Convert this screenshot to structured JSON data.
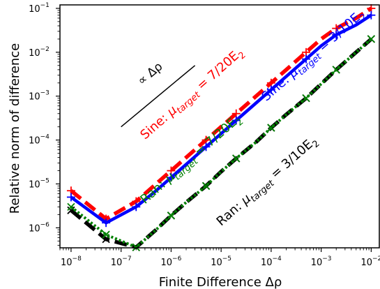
{
  "chart_data": {
    "type": "line",
    "xlabel": "Finite Difference Δρ",
    "ylabel": "Relative norm of difference",
    "xscale": "log",
    "yscale": "log",
    "xlim": [
      6e-09,
      0.015
    ],
    "ylim": [
      3.5e-07,
      0.12
    ],
    "grid": false,
    "x_ticks": [
      {
        "value": 1e-08,
        "base": "10",
        "exp": "−8"
      },
      {
        "value": 1e-07,
        "base": "10",
        "exp": "−7"
      },
      {
        "value": 1e-06,
        "base": "10",
        "exp": "−6"
      },
      {
        "value": 1e-05,
        "base": "10",
        "exp": "−5"
      },
      {
        "value": 0.0001,
        "base": "10",
        "exp": "−4"
      },
      {
        "value": 0.001,
        "base": "10",
        "exp": "−3"
      },
      {
        "value": 0.01,
        "base": "10",
        "exp": "−2"
      }
    ],
    "y_ticks": [
      {
        "value": 1e-06,
        "base": "10",
        "exp": "−6"
      },
      {
        "value": 1e-05,
        "base": "10",
        "exp": "−5"
      },
      {
        "value": 0.0001,
        "base": "10",
        "exp": "−4"
      },
      {
        "value": 0.001,
        "base": "10",
        "exp": "−3"
      },
      {
        "value": 0.01,
        "base": "10",
        "exp": "−2"
      },
      {
        "value": 0.1,
        "base": "10",
        "exp": "−1"
      }
    ],
    "x": [
      1e-08,
      5e-08,
      2e-07,
      5e-07,
      1e-06,
      2e-06,
      5e-06,
      1e-05,
      2e-05,
      5e-05,
      0.0001,
      0.0002,
      0.0005,
      0.001,
      0.002,
      0.005,
      0.01
    ],
    "series": [
      {
        "name": "Sine: μ_target = 7/20E₂",
        "color": "#ff0000",
        "dash": "dashed",
        "marker": "plus",
        "values": [
          7e-06,
          1.6e-06,
          4e-06,
          1e-05,
          2e-05,
          4e-05,
          0.0001,
          0.0002,
          0.0004,
          0.001,
          0.002,
          0.004,
          0.01,
          0.02,
          0.035,
          0.06,
          0.1
        ]
      },
      {
        "name": "Sine: μ_target = 3/10E₂",
        "color": "#0000ff",
        "dash": "solid",
        "marker": "plus",
        "values": [
          5e-06,
          1.3e-06,
          3e-06,
          7e-06,
          1.4e-05,
          2.8e-05,
          7e-05,
          0.00014,
          0.00028,
          0.0007,
          0.0014,
          0.0028,
          0.007,
          0.014,
          0.025,
          0.042,
          0.07
        ]
      },
      {
        "name": "Ran: μ_target = 3/10E₂",
        "color": "#000000",
        "dash": "dashed",
        "marker": "x",
        "values": [
          2.5e-06,
          5.5e-07,
          3.6e-07,
          9e-07,
          1.9e-06,
          3.8e-06,
          9e-06,
          1.9e-05,
          3.8e-05,
          9e-05,
          0.00019,
          0.00038,
          0.0009,
          0.0019,
          0.004,
          0.01,
          0.02
        ]
      },
      {
        "name": "Ran: μ_target = 7/20E₂",
        "color": "#008000",
        "dash": "dotted",
        "marker": "x",
        "values": [
          3e-06,
          7e-07,
          3.6e-07,
          9e-07,
          1.9e-06,
          3.8e-06,
          9e-06,
          1.9e-05,
          3.8e-05,
          9e-05,
          0.00019,
          0.00038,
          0.0009,
          0.0019,
          0.004,
          0.01,
          0.02
        ]
      }
    ],
    "reference_line": {
      "label": "∝ Δρ",
      "from": [
        1e-07,
        0.0002
      ],
      "to": [
        3e-06,
        0.005
      ]
    },
    "annotations": [
      {
        "text": "Sine: μ_target = 7/20E₂",
        "color": "#ff0000"
      },
      {
        "text": "Sine: μ_target = 3/10E₂",
        "color": "#0000ff"
      },
      {
        "text": "Ran: μ_target = 7/20E₂",
        "color": "#008000"
      },
      {
        "text": "Ran: μ_target = 3/10E₂",
        "color": "#000000"
      }
    ]
  }
}
